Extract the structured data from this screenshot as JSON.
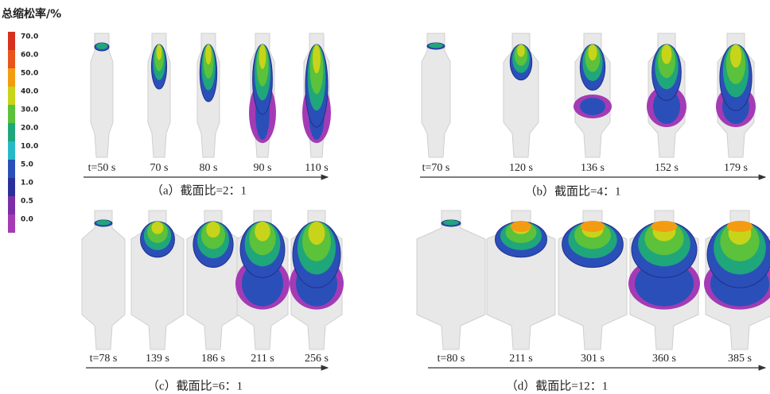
{
  "legend": {
    "title": "总缩松率/%",
    "items": [
      {
        "label": "70.0",
        "color": "#d7301f"
      },
      {
        "label": "60.0",
        "color": "#e8541c"
      },
      {
        "label": "50.0",
        "color": "#f39c12"
      },
      {
        "label": "40.0",
        "color": "#c8d419"
      },
      {
        "label": "30.0",
        "color": "#5cc13b"
      },
      {
        "label": "20.0",
        "color": "#1fa67a"
      },
      {
        "label": "10.0",
        "color": "#28b9c9"
      },
      {
        "label": "5.0",
        "color": "#2b4fb8"
      },
      {
        "label": "1.0",
        "color": "#2a2f9a"
      },
      {
        "label": "0.5",
        "color": "#7b2fa6"
      },
      {
        "label": "0.0",
        "color": "#a43bb5"
      }
    ]
  },
  "panels": [
    {
      "caption": "（a）截面比=2：1",
      "times": [
        "t=50 s",
        "70 s",
        "80 s",
        "90 s",
        "110 s"
      ]
    },
    {
      "caption": "（b）截面比=4：1",
      "times": [
        "t=70 s",
        "120 s",
        "136 s",
        "152 s",
        "179 s"
      ]
    },
    {
      "caption": "（c）截面比=6：1",
      "times": [
        "t=78 s",
        "139 s",
        "186 s",
        "211 s",
        "256 s"
      ]
    },
    {
      "caption": "（d）截面比=12：1",
      "times": [
        "t=80 s",
        "211 s",
        "301 s",
        "360 s",
        "385 s"
      ]
    }
  ]
}
